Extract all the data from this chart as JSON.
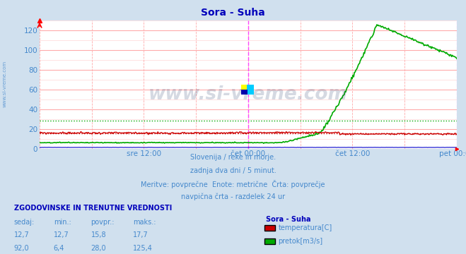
{
  "title": "Sora - Suha",
  "bg_color": "#d0e0ee",
  "plot_bg_color": "#ffffff",
  "grid_h_color": "#ffaaaa",
  "grid_v_color": "#ffaaaa",
  "ylim": [
    0,
    130
  ],
  "yticks": [
    0,
    20,
    40,
    60,
    80,
    100,
    120
  ],
  "tick_color": "#4488cc",
  "title_color": "#0000bb",
  "title_fontsize": 10,
  "watermark_text": "www.si-vreme.com",
  "watermark_color": "#1a3060",
  "watermark_alpha": 0.18,
  "watermark_fontsize": 19,
  "subtitle_lines": [
    "Slovenija / reke in morje.",
    "zadnja dva dni / 5 minut.",
    "Meritve: povprečne  Enote: metrične  Črta: povprečje",
    "navpična črta - razdelek 24 ur"
  ],
  "subtitle_color": "#4488cc",
  "subtitle_fontsize": 7,
  "table_header": "ZGODOVINSKE IN TRENUTNE VREDNOSTI",
  "table_header_color": "#0000bb",
  "table_header_fontsize": 7,
  "table_col_headers": [
    "sedaj:",
    "min.:",
    "povpr.:",
    "maks.:"
  ],
  "table_col_color": "#4488cc",
  "table_data": [
    [
      "12,7",
      "12,7",
      "15,8",
      "17,7"
    ],
    [
      "92,0",
      "6,4",
      "28,0",
      "125,4"
    ]
  ],
  "legend_station": "Sora - Suha",
  "legend_station_color": "#0000bb",
  "legend_items": [
    {
      "label": "temperatura[C]",
      "color": "#cc0000"
    },
    {
      "label": "pretok[m3/s]",
      "color": "#00aa00"
    }
  ],
  "vline_midnight_color": "#ff44ff",
  "vline_day_color": "#ffaaaa",
  "hline_temp_avg": 15.8,
  "hline_temp_color": "#cc0000",
  "hline_flow_avg": 28.0,
  "hline_flow_color": "#00aa00",
  "temp_color": "#cc0000",
  "flow_color": "#00aa00",
  "height_color": "#0000cc",
  "sidebar_text": "www.si-vreme.com",
  "sidebar_color": "#4488cc",
  "sidebar_fontsize": 5,
  "logo_colors": [
    "#ffff00",
    "#00ccff",
    "#0000aa"
  ],
  "n_points": 576
}
